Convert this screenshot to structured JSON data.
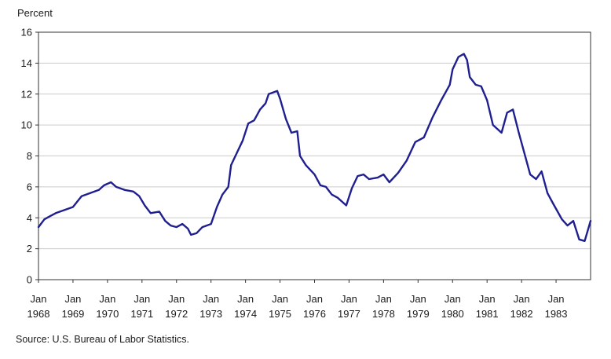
{
  "chart_data": {
    "type": "line",
    "ylabel": "Percent",
    "ylim": [
      0,
      16
    ],
    "yticks": [
      0,
      2,
      4,
      6,
      8,
      10,
      12,
      14,
      16
    ],
    "xlim": [
      1968.0,
      1984.0
    ],
    "xtick_labels": [
      {
        "month": "Jan",
        "year": "1968",
        "x": 1968
      },
      {
        "month": "Jan",
        "year": "1969",
        "x": 1969
      },
      {
        "month": "Jan",
        "year": "1970",
        "x": 1970
      },
      {
        "month": "Jan",
        "year": "1971",
        "x": 1971
      },
      {
        "month": "Jan",
        "year": "1972",
        "x": 1972
      },
      {
        "month": "Jan",
        "year": "1973",
        "x": 1973
      },
      {
        "month": "Jan",
        "year": "1974",
        "x": 1974
      },
      {
        "month": "Jan",
        "year": "1975",
        "x": 1975
      },
      {
        "month": "Jan",
        "year": "1976",
        "x": 1976
      },
      {
        "month": "Jan",
        "year": "1977",
        "x": 1977
      },
      {
        "month": "Jan",
        "year": "1978",
        "x": 1978
      },
      {
        "month": "Jan",
        "year": "1979",
        "x": 1979
      },
      {
        "month": "Jan",
        "year": "1980",
        "x": 1980
      },
      {
        "month": "Jan",
        "year": "1981",
        "x": 1981
      },
      {
        "month": "Jan",
        "year": "1982",
        "x": 1982
      },
      {
        "month": "Jan",
        "year": "1983",
        "x": 1983
      }
    ],
    "grid": "horizontal",
    "colors": {
      "line": "#1f1f8f",
      "grid": "#cccccc",
      "axis": "#333333"
    },
    "series": [
      {
        "values": [
          [
            1968.0,
            3.4
          ],
          [
            1968.17,
            3.9
          ],
          [
            1968.33,
            4.1
          ],
          [
            1968.5,
            4.3
          ],
          [
            1968.75,
            4.5
          ],
          [
            1969.0,
            4.7
          ],
          [
            1969.25,
            5.4
          ],
          [
            1969.5,
            5.6
          ],
          [
            1969.75,
            5.8
          ],
          [
            1969.9,
            6.1
          ],
          [
            1970.1,
            6.3
          ],
          [
            1970.25,
            6.0
          ],
          [
            1970.5,
            5.8
          ],
          [
            1970.75,
            5.7
          ],
          [
            1970.92,
            5.4
          ],
          [
            1971.08,
            4.8
          ],
          [
            1971.25,
            4.3
          ],
          [
            1971.5,
            4.4
          ],
          [
            1971.67,
            3.8
          ],
          [
            1971.83,
            3.5
          ],
          [
            1972.0,
            3.4
          ],
          [
            1972.17,
            3.6
          ],
          [
            1972.33,
            3.3
          ],
          [
            1972.42,
            2.9
          ],
          [
            1972.58,
            3.0
          ],
          [
            1972.75,
            3.4
          ],
          [
            1973.0,
            3.6
          ],
          [
            1973.17,
            4.7
          ],
          [
            1973.33,
            5.5
          ],
          [
            1973.5,
            6.0
          ],
          [
            1973.58,
            7.4
          ],
          [
            1973.75,
            8.2
          ],
          [
            1973.92,
            9.0
          ],
          [
            1974.08,
            10.1
          ],
          [
            1974.25,
            10.3
          ],
          [
            1974.42,
            11.0
          ],
          [
            1974.58,
            11.4
          ],
          [
            1974.67,
            12.0
          ],
          [
            1974.92,
            12.2
          ],
          [
            1975.0,
            11.7
          ],
          [
            1975.17,
            10.4
          ],
          [
            1975.33,
            9.5
          ],
          [
            1975.5,
            9.6
          ],
          [
            1975.58,
            8.0
          ],
          [
            1975.75,
            7.4
          ],
          [
            1976.0,
            6.8
          ],
          [
            1976.17,
            6.1
          ],
          [
            1976.33,
            6.0
          ],
          [
            1976.5,
            5.5
          ],
          [
            1976.67,
            5.3
          ],
          [
            1976.92,
            4.8
          ],
          [
            1977.08,
            5.9
          ],
          [
            1977.25,
            6.7
          ],
          [
            1977.42,
            6.8
          ],
          [
            1977.58,
            6.5
          ],
          [
            1977.83,
            6.6
          ],
          [
            1978.0,
            6.8
          ],
          [
            1978.17,
            6.3
          ],
          [
            1978.42,
            6.9
          ],
          [
            1978.67,
            7.7
          ],
          [
            1978.92,
            8.9
          ],
          [
            1979.17,
            9.2
          ],
          [
            1979.42,
            10.5
          ],
          [
            1979.67,
            11.6
          ],
          [
            1979.92,
            12.6
          ],
          [
            1980.0,
            13.6
          ],
          [
            1980.17,
            14.4
          ],
          [
            1980.33,
            14.6
          ],
          [
            1980.42,
            14.2
          ],
          [
            1980.5,
            13.1
          ],
          [
            1980.67,
            12.6
          ],
          [
            1980.83,
            12.5
          ],
          [
            1981.0,
            11.6
          ],
          [
            1981.17,
            10.0
          ],
          [
            1981.42,
            9.5
          ],
          [
            1981.58,
            10.8
          ],
          [
            1981.75,
            11.0
          ],
          [
            1981.92,
            9.5
          ],
          [
            1982.08,
            8.2
          ],
          [
            1982.25,
            6.8
          ],
          [
            1982.42,
            6.5
          ],
          [
            1982.58,
            7.0
          ],
          [
            1982.75,
            5.6
          ],
          [
            1982.92,
            4.9
          ],
          [
            1983.17,
            3.9
          ],
          [
            1983.33,
            3.5
          ],
          [
            1983.5,
            3.8
          ],
          [
            1983.67,
            2.6
          ],
          [
            1983.83,
            2.5
          ],
          [
            1984.0,
            3.8
          ]
        ]
      }
    ]
  },
  "source_note": "Source: U.S. Bureau of Labor Statistics."
}
